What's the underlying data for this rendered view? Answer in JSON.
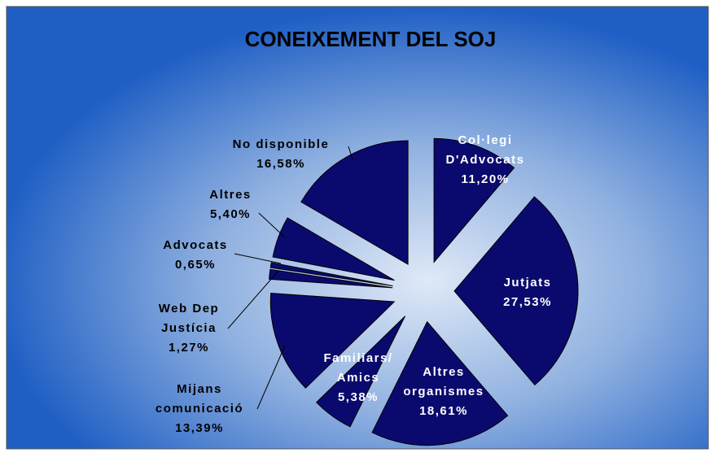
{
  "chart_data": {
    "type": "pie",
    "title": "CONEIXEMENT DEL SOJ",
    "categories": [
      [
        "Col·legi",
        "D'Advocats"
      ],
      [
        "Jutjats"
      ],
      [
        "Altres",
        "organismes"
      ],
      [
        "Familiars/",
        "Amics"
      ],
      [
        "Mijans",
        "comunicació"
      ],
      [
        "Web Dep",
        "Justícia"
      ],
      [
        "Advocats"
      ],
      [
        "Altres"
      ],
      [
        "No disponible"
      ]
    ],
    "values": [
      11.2,
      27.53,
      18.61,
      5.38,
      13.39,
      1.27,
      0.65,
      5.4,
      16.58
    ],
    "value_labels": [
      "11,20%",
      "27,53%",
      "18,61%",
      "5,38%",
      "13,39%",
      "1,27%",
      "0,65%",
      "5,40%",
      "16,58%"
    ],
    "color": "#0a0a6e"
  }
}
